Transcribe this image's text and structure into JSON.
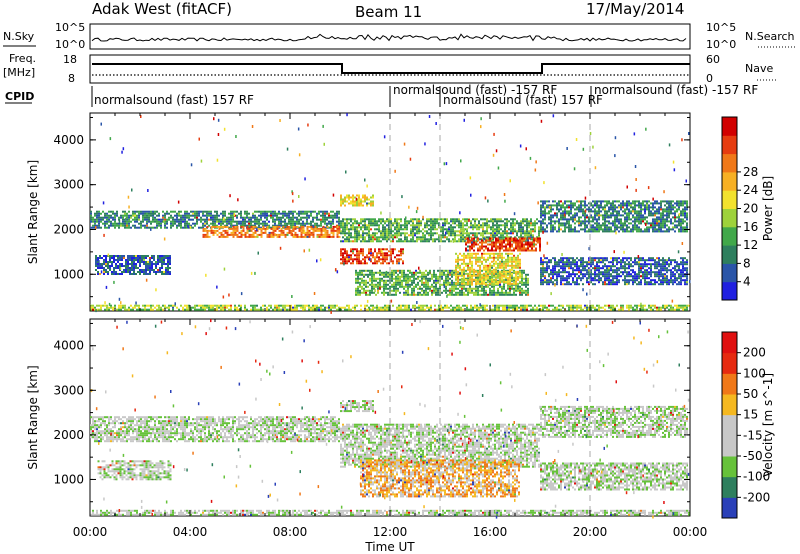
{
  "header": {
    "station": "Adak West (fitACF)",
    "beam": "Beam 11",
    "date": "17/May/2014"
  },
  "strip_labels": {
    "nsky": "N.Sky",
    "nsearch": "N.Search",
    "freq_line1": "Freq.",
    "freq_line2": "[MHz]",
    "nave": "Nave",
    "cpid": "CPID",
    "nsky_ticks": [
      "10^5",
      "10^0"
    ],
    "nsearch_ticks": [
      "10^5",
      "10^0"
    ],
    "freq_ticks": [
      "18",
      "8"
    ],
    "nave_ticks": [
      "60",
      "0"
    ]
  },
  "cpid_segments": [
    {
      "text": "normalsound (fast) 157 RF"
    },
    {
      "text": "normalsound (fast) -157 RF"
    },
    {
      "text": "normalsound (fast) 157 RF"
    },
    {
      "text": "normalsound (fast) -157 RF"
    }
  ],
  "x_axis": {
    "label": "Time UT",
    "ticks": [
      "00:00",
      "04:00",
      "08:00",
      "12:00",
      "16:00",
      "20:00",
      "00:00"
    ]
  },
  "chart_data": [
    {
      "type": "heatmap",
      "variable": "Power",
      "colorbar_label": "Power [dB]",
      "colorbar_ticks": [
        "28",
        "24",
        "20",
        "16",
        "12",
        "8",
        "4"
      ],
      "ylabel": "Slant Range [km]",
      "y_ticks": [
        "4000",
        "3000",
        "2000",
        "1000"
      ],
      "xlim_hours": [
        0,
        24
      ],
      "ylim_km": [
        180,
        4600
      ],
      "colors": [
        "#2020e0",
        "#2a55a8",
        "#2e7f5e",
        "#41a84a",
        "#9ed23b",
        "#f2e22e",
        "#f7b024",
        "#f07818",
        "#e63c10",
        "#d10000"
      ],
      "echo_regions": [
        {
          "t0": 0.0,
          "t1": 10.0,
          "r0": 2030,
          "r1": 2420,
          "level": 2
        },
        {
          "t0": 4.5,
          "t1": 10.0,
          "r0": 1850,
          "r1": 2080,
          "level": 7
        },
        {
          "t0": 0.2,
          "t1": 3.2,
          "r0": 1000,
          "r1": 1430,
          "level": 1
        },
        {
          "t0": 10.0,
          "t1": 12.5,
          "r0": 1250,
          "r1": 1580,
          "level": 8
        },
        {
          "t0": 10.0,
          "t1": 18.0,
          "r0": 1750,
          "r1": 2250,
          "level": 3
        },
        {
          "t0": 10.0,
          "t1": 11.3,
          "r0": 2520,
          "r1": 2780,
          "level": 5
        },
        {
          "t0": 10.6,
          "t1": 17.5,
          "r0": 560,
          "r1": 1100,
          "level": 3
        },
        {
          "t0": 14.6,
          "t1": 17.2,
          "r0": 800,
          "r1": 1480,
          "level": 5
        },
        {
          "t0": 15.0,
          "t1": 18.0,
          "r0": 1520,
          "r1": 1820,
          "level": 8
        },
        {
          "t0": 18.0,
          "t1": 23.9,
          "r0": 1950,
          "r1": 2650,
          "level": 2
        },
        {
          "t0": 18.0,
          "t1": 23.9,
          "r0": 780,
          "r1": 1380,
          "level": 1
        },
        {
          "t0": 0.0,
          "t1": 24.0,
          "r0": 190,
          "r1": 320,
          "level": 4
        }
      ]
    },
    {
      "type": "heatmap",
      "variable": "Velocity",
      "colorbar_label": "Velocity [m s^-1]",
      "colorbar_ticks": [
        "200",
        "100",
        "50",
        "15",
        "-15",
        "-50",
        "-100",
        "-200"
      ],
      "ylabel": "Slant Range [km]",
      "y_ticks": [
        "4000",
        "3000",
        "2000",
        "1000"
      ],
      "xlim_hours": [
        0,
        24
      ],
      "ylim_km": [
        180,
        4600
      ],
      "colors": [
        "#2a40b8",
        "#2e7f5e",
        "#66c23a",
        "#c8c8c8",
        "#c8c8c8",
        "#f5b820",
        "#f07818",
        "#e62a10",
        "#e01010"
      ],
      "echo_regions": [
        {
          "t0": 0.0,
          "t1": 10.0,
          "r0": 1850,
          "r1": 2420,
          "level": 3
        },
        {
          "t0": 10.0,
          "t1": 18.0,
          "r0": 1300,
          "r1": 2250,
          "level": 3
        },
        {
          "t0": 10.0,
          "t1": 11.3,
          "r0": 2520,
          "r1": 2780,
          "level": 3
        },
        {
          "t0": 10.8,
          "t1": 17.2,
          "r0": 600,
          "r1": 1450,
          "level": 5
        },
        {
          "t0": 18.0,
          "t1": 23.9,
          "r0": 1950,
          "r1": 2650,
          "level": 3
        },
        {
          "t0": 18.0,
          "t1": 23.9,
          "r0": 780,
          "r1": 1380,
          "level": 3
        },
        {
          "t0": 0.3,
          "t1": 3.2,
          "r0": 1000,
          "r1": 1430,
          "level": 3
        },
        {
          "t0": 0.0,
          "t1": 24.0,
          "r0": 190,
          "r1": 320,
          "level": 3
        }
      ]
    }
  ]
}
